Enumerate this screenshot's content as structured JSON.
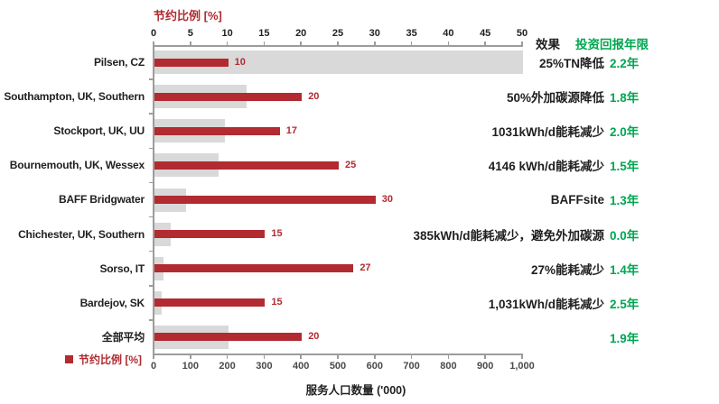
{
  "colors": {
    "saving_bar_red": "#B12B31",
    "payback_green": "#00A651",
    "population_bar_gray": "#D9D9D9",
    "axis_gray": "#9C9C9C",
    "text_black": "#1F1F1F"
  },
  "chart_data": {
    "type": "bar",
    "orientation": "horizontal",
    "title": "节约比例 [%]",
    "legend_label": "节约比例 [%]",
    "legend_position": "bottom-left",
    "grid": false,
    "top_axis": {
      "title": "节约比例 [%]",
      "min": 0,
      "max": 50,
      "step": 5,
      "ticks": [
        "0",
        "5",
        "10",
        "15",
        "20",
        "25",
        "30",
        "35",
        "40",
        "45",
        "50"
      ]
    },
    "bottom_axis": {
      "title": "服务人口数量 ('000)",
      "min": 0,
      "max": 1000,
      "step": 100,
      "ticks": [
        "0",
        "100",
        "200",
        "300",
        "400",
        "500",
        "600",
        "700",
        "800",
        "900",
        "1,000"
      ]
    },
    "header": {
      "effect": "效果",
      "payback": "投资回报年限"
    },
    "series": [
      {
        "name": "节约比例 [%]",
        "axis": "top",
        "color": "#B12B31"
      },
      {
        "name": "服务人口数量 ('000)",
        "axis": "bottom",
        "color": "#D9D9D9"
      }
    ],
    "rows": [
      {
        "label": "Pilsen, CZ",
        "saving_pct": 10,
        "population_k": 1000,
        "effect": "25%TN降低",
        "payback": "2.2年"
      },
      {
        "label": "Southampton, UK, Southern",
        "saving_pct": 20,
        "population_k": 250,
        "effect": "50%外加碳源降低",
        "payback": "1.8年"
      },
      {
        "label": "Stockport, UK, UU",
        "saving_pct": 17,
        "population_k": 190,
        "effect": "1031kWh/d能耗减少",
        "payback": "2.0年"
      },
      {
        "label": "Bournemouth, UK, Wessex",
        "saving_pct": 25,
        "population_k": 175,
        "effect": "4146 kWh/d能耗减少",
        "payback": "1.5年"
      },
      {
        "label": "BAFF Bridgwater",
        "saving_pct": 30,
        "population_k": 85,
        "effect": "BAFFsite",
        "payback": "1.3年"
      },
      {
        "label": "Chichester, UK, Southern",
        "saving_pct": 15,
        "population_k": 45,
        "effect": "385kWh/d能耗减少，避免外加碳源",
        "payback": "0.0年"
      },
      {
        "label": "Sorso, IT",
        "saving_pct": 27,
        "population_k": 25,
        "effect": "27%能耗减少",
        "payback": "1.4年"
      },
      {
        "label": "Bardejov, SK",
        "saving_pct": 15,
        "population_k": 20,
        "effect": "1,031kWh/d能耗减少",
        "payback": "2.5年"
      },
      {
        "label": "全部平均",
        "saving_pct": 20,
        "population_k": 200,
        "effect": "",
        "payback": "1.9年"
      }
    ]
  }
}
